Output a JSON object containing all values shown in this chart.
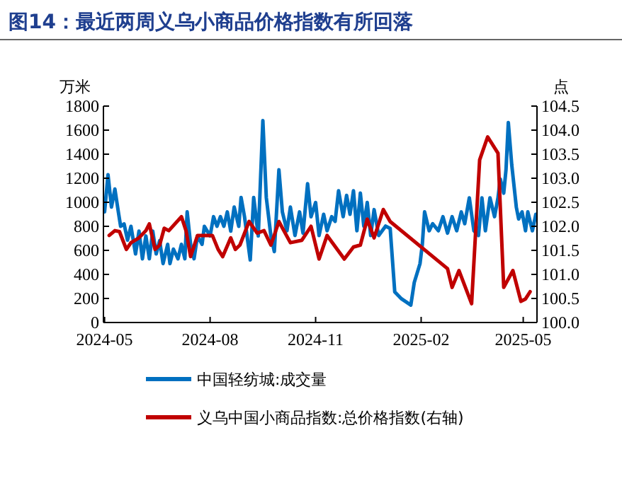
{
  "chart_data": {
    "type": "line",
    "title": "图14：最近两周义乌小商品价格指数有所回落",
    "ylabel": "万米",
    "y2label": "点",
    "xlim": [
      "2024-04-30",
      "2025-05-13"
    ],
    "xticks": [
      "2024-05",
      "2024-08",
      "2024-11",
      "2025-02",
      "2025-05"
    ],
    "ylim": [
      0,
      1800
    ],
    "yticks": [
      0,
      200,
      400,
      600,
      800,
      1000,
      1200,
      1400,
      1600,
      1800
    ],
    "y2lim": [
      100,
      104.5
    ],
    "y2ticks": [
      {
        "value": 100,
        "label": "100.0"
      },
      {
        "value": 100.5,
        "label": "100.5"
      },
      {
        "value": 101,
        "label": "101.0"
      },
      {
        "value": 101.5,
        "label": "101.5"
      },
      {
        "value": 102,
        "label": "102.0"
      },
      {
        "value": 102.5,
        "label": "102.5"
      },
      {
        "value": 103,
        "label": "103.0"
      },
      {
        "value": 103.5,
        "label": "103.5"
      },
      {
        "value": 104,
        "label": "104.0"
      },
      {
        "value": 104.5,
        "label": "104.5"
      }
    ],
    "legend": "bottom",
    "grid": false,
    "marker": "none",
    "line_style": "solid",
    "series": [
      {
        "name": "中国轻纺城:成交量",
        "color": "#0070c0",
        "x": [
          "2024-05-01",
          "2024-05-04",
          "2024-05-07",
          "2024-05-10",
          "2024-05-13",
          "2024-05-15",
          "2024-05-18",
          "2024-05-21",
          "2024-05-24",
          "2024-05-28",
          "2024-05-31",
          "2024-06-03",
          "2024-06-06",
          "2024-06-09",
          "2024-06-12",
          "2024-06-15",
          "2024-06-18",
          "2024-06-21",
          "2024-06-25",
          "2024-06-27",
          "2024-06-30",
          "2024-07-04",
          "2024-07-07",
          "2024-07-10",
          "2024-07-12",
          "2024-07-15",
          "2024-07-18",
          "2024-07-21",
          "2024-07-25",
          "2024-07-27",
          "2024-08-01",
          "2024-08-04",
          "2024-08-07",
          "2024-08-10",
          "2024-08-13",
          "2024-08-16",
          "2024-08-19",
          "2024-08-22",
          "2024-08-26",
          "2024-08-28",
          "2024-08-31",
          "2024-09-05",
          "2024-09-08",
          "2024-09-12",
          "2024-09-16",
          "2024-09-19",
          "2024-09-23",
          "2024-09-26",
          "2024-09-30",
          "2024-10-03",
          "2024-10-07",
          "2024-10-10",
          "2024-10-14",
          "2024-10-18",
          "2024-10-21",
          "2024-10-25",
          "2024-10-28",
          "2024-11-01",
          "2024-11-04",
          "2024-11-08",
          "2024-11-11",
          "2024-11-15",
          "2024-11-18",
          "2024-11-21",
          "2024-11-25",
          "2024-11-28",
          "2024-12-01",
          "2024-12-04",
          "2024-12-07",
          "2024-12-10",
          "2024-12-13",
          "2024-12-16",
          "2024-12-19",
          "2024-12-22",
          "2024-12-26",
          "2025-01-01",
          "2025-01-05",
          "2025-01-09",
          "2025-01-15",
          "2025-01-23",
          "2025-01-26",
          "2025-01-31",
          "2025-02-02",
          "2025-02-04",
          "2025-02-08",
          "2025-02-11",
          "2025-02-16",
          "2025-02-20",
          "2025-02-24",
          "2025-02-28",
          "2025-03-04",
          "2025-03-08",
          "2025-03-11",
          "2025-03-15",
          "2025-03-19",
          "2025-03-23",
          "2025-03-26",
          "2025-03-29",
          "2025-04-02",
          "2025-04-06",
          "2025-04-09",
          "2025-04-11",
          "2025-04-14",
          "2025-04-16",
          "2025-04-18",
          "2025-04-21",
          "2025-04-25",
          "2025-04-27",
          "2025-04-30",
          "2025-05-03",
          "2025-05-05",
          "2025-05-09",
          "2025-05-12"
        ],
        "values": [
          920,
          1230,
          960,
          1110,
          920,
          800,
          820,
          685,
          800,
          570,
          760,
          530,
          720,
          530,
          760,
          570,
          680,
          490,
          650,
          490,
          610,
          530,
          650,
          530,
          920,
          650,
          530,
          720,
          650,
          800,
          720,
          880,
          800,
          880,
          800,
          920,
          760,
          960,
          800,
          1040,
          880,
          520,
          1040,
          720,
          1680,
          1040,
          720,
          590,
          1270,
          920,
          763,
          960,
          724,
          920,
          743,
          1154,
          880,
          998,
          724,
          900,
          763,
          880,
          841,
          1096,
          880,
          1057,
          900,
          1096,
          763,
          1076,
          802,
          998,
          724,
          939,
          724,
          802,
          783,
          254,
          196,
          145,
          333,
          489,
          646,
          920,
          763,
          822,
          763,
          880,
          743,
          880,
          763,
          920,
          822,
          1037,
          763,
          724,
          1037,
          763,
          1037,
          880,
          1037,
          1193,
          1076,
          1272,
          1663,
          1311,
          958,
          861,
          920,
          763,
          920,
          763,
          900
        ]
      },
      {
        "name": "义乌中国小商品指数:总价格指数(右轴)",
        "color": "#c00000",
        "axis": "y2",
        "x": [
          "2024-05-05",
          "2024-05-10",
          "2024-05-14",
          "2024-05-20",
          "2024-05-24",
          "2024-05-31",
          "2024-06-06",
          "2024-06-09",
          "2024-06-14",
          "2024-06-18",
          "2024-06-22",
          "2024-06-26",
          "2024-07-07",
          "2024-07-11",
          "2024-07-15",
          "2024-07-21",
          "2024-07-27",
          "2024-08-03",
          "2024-08-08",
          "2024-08-12",
          "2024-08-19",
          "2024-08-23",
          "2024-08-27",
          "2024-09-04",
          "2024-09-11",
          "2024-09-17",
          "2024-09-23",
          "2024-09-30",
          "2024-10-10",
          "2024-10-20",
          "2024-10-28",
          "2024-11-04",
          "2024-11-11",
          "2024-11-26",
          "2024-12-04",
          "2024-12-10",
          "2024-12-16",
          "2024-12-22",
          "2024-12-30",
          "2025-01-05",
          "2025-02-24",
          "2025-02-28",
          "2025-03-06",
          "2025-03-17",
          "2025-03-24",
          "2025-03-31",
          "2025-04-09",
          "2025-04-14",
          "2025-04-22",
          "2025-04-29",
          "2025-05-03",
          "2025-05-07"
        ],
        "values": [
          101.81,
          101.91,
          101.89,
          101.52,
          101.66,
          101.76,
          101.91,
          102.05,
          101.52,
          101.61,
          101.96,
          101.91,
          102.2,
          101.91,
          101.37,
          101.81,
          101.81,
          101.81,
          101.52,
          101.37,
          101.76,
          101.52,
          101.61,
          102.1,
          101.86,
          101.91,
          101.61,
          102.1,
          101.66,
          101.71,
          102.0,
          101.32,
          101.81,
          101.32,
          101.57,
          101.61,
          102.15,
          101.76,
          102.35,
          102.1,
          101.12,
          100.73,
          101.08,
          100.39,
          103.38,
          103.86,
          103.52,
          100.73,
          101.08,
          100.44,
          100.49,
          100.64
        ]
      }
    ]
  }
}
